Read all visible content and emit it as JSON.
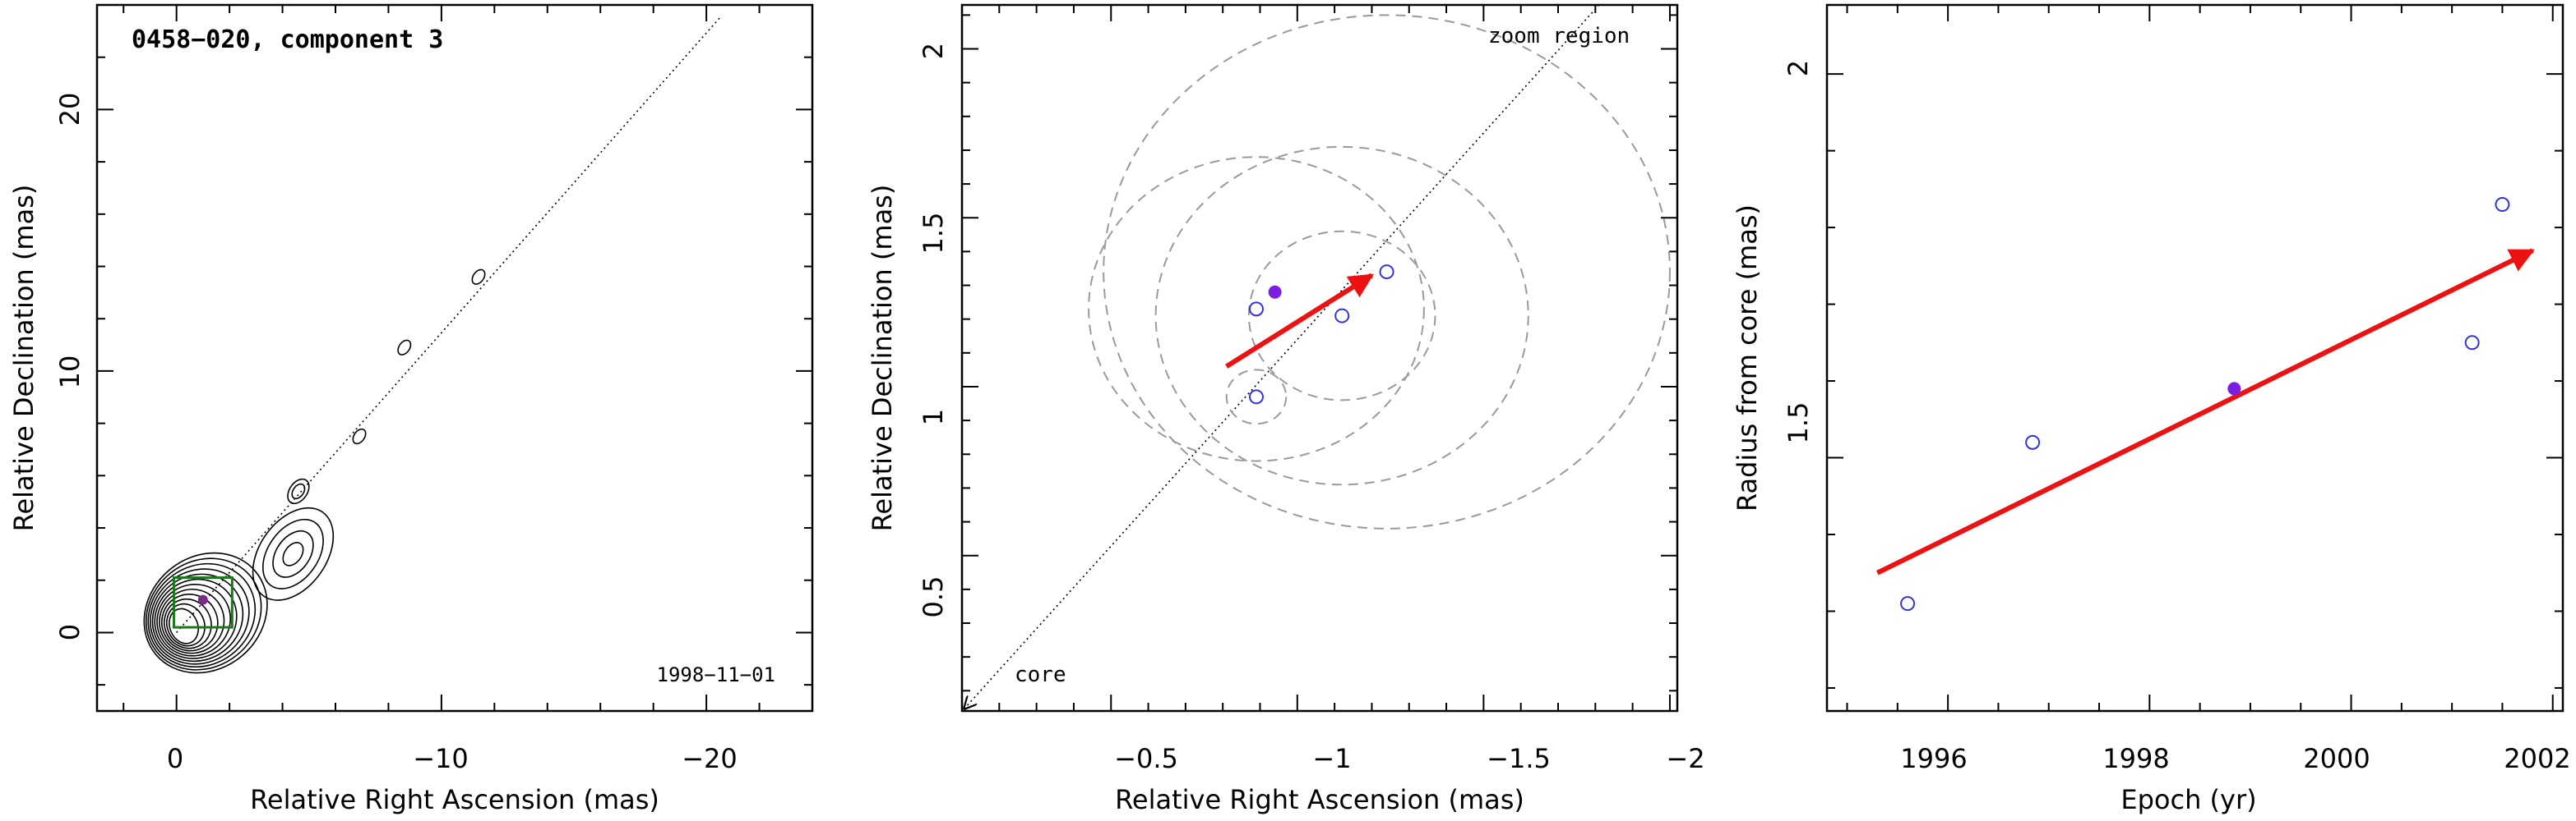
{
  "chart_data": [
    {
      "type": "contour",
      "title": "0458−020, component 3",
      "epoch_label": "1998−11−01",
      "xlabel": "Relative Right Ascension (mas)",
      "ylabel": "Relative Declination (mas)",
      "xlim": [
        3,
        -24
      ],
      "ylim": [
        -3,
        24
      ],
      "xticks": [
        0,
        -10,
        -20
      ],
      "xtick_labels": [
        "0",
        "−10",
        "−20"
      ],
      "yticks": [
        0,
        10,
        20
      ],
      "ytick_labels": [
        "0",
        "10",
        "20"
      ],
      "jet_axis_end": [
        -20.5,
        23.5
      ],
      "jet_features": [
        {
          "x": -4.4,
          "y": 3.0
        },
        {
          "x": -4.6,
          "y": 5.4
        },
        {
          "x": -6.9,
          "y": 7.5
        },
        {
          "x": -8.6,
          "y": 10.9
        },
        {
          "x": -11.4,
          "y": 13.6
        }
      ],
      "zoom_box": {
        "x": [
          0.1,
          -2.1
        ],
        "y": [
          0.2,
          2.1
        ]
      },
      "component_marker": {
        "x": -1.0,
        "y": 1.25
      },
      "colors": {
        "contour": "#000000",
        "zoom_box": "#1a7a1a",
        "marker": "#7a2a8a"
      }
    },
    {
      "type": "scatter",
      "xlabel": "Relative Right Ascension (mas)",
      "ylabel": "Relative Declination (mas)",
      "xlim": [
        -0.1,
        -2.02
      ],
      "ylim": [
        0.04,
        2.13
      ],
      "xticks": [
        -0.5,
        -1,
        -1.5,
        -2
      ],
      "xtick_labels": [
        "−0.5",
        "−1",
        "−1.5",
        "−2"
      ],
      "yticks": [
        0.5,
        1,
        1.5,
        2
      ],
      "ytick_labels": [
        "0.5",
        "1",
        "1.5",
        "2"
      ],
      "annotations": [
        "zoom region",
        "core"
      ],
      "points_open": [
        {
          "x": -0.89,
          "y": 0.97
        },
        {
          "x": -0.89,
          "y": 1.23
        },
        {
          "x": -1.12,
          "y": 1.21
        },
        {
          "x": -1.24,
          "y": 1.34
        }
      ],
      "point_filled": {
        "x": -0.94,
        "y": 1.28
      },
      "circles": [
        {
          "x": -0.89,
          "y": 0.97,
          "r": 0.08
        },
        {
          "x": -1.12,
          "y": 1.21,
          "r": 0.25
        },
        {
          "x": -0.89,
          "y": 1.23,
          "r": 0.45
        },
        {
          "x": -1.12,
          "y": 1.21,
          "r": 0.5
        },
        {
          "x": -1.24,
          "y": 1.34,
          "r": 0.76
        }
      ],
      "motion_vector": {
        "from": [
          -0.81,
          1.06
        ],
        "to": [
          -1.2,
          1.33
        ]
      },
      "jet_axis": {
        "from": [
          -0.1,
          0.04
        ],
        "to": [
          -1.81,
          2.13
        ]
      },
      "colors": {
        "points": "#3333dd",
        "filled": "#7a1fe0",
        "vector": "#ee1111",
        "circles": "#9a9a9a"
      }
    },
    {
      "type": "scatter",
      "xlabel": "Epoch (yr)",
      "ylabel": "Radius from core (mas)",
      "xlim": [
        1994.8,
        2002.1
      ],
      "ylim": [
        1.17,
        2.09
      ],
      "xticks": [
        1996,
        1998,
        2000,
        2002
      ],
      "xtick_labels": [
        "1996",
        "1998",
        "2000",
        "2002"
      ],
      "yticks": [
        1.5,
        2
      ],
      "ytick_labels": [
        "1.5",
        "2"
      ],
      "points_open": [
        {
          "x": 1995.6,
          "y": 1.31
        },
        {
          "x": 1996.84,
          "y": 1.52
        },
        {
          "x": 2001.2,
          "y": 1.65
        },
        {
          "x": 2001.5,
          "y": 1.83
        }
      ],
      "point_filled": {
        "x": 1998.84,
        "y": 1.59
      },
      "trend": {
        "from": [
          1995.3,
          1.35
        ],
        "to": [
          2001.8,
          1.77
        ]
      },
      "colors": {
        "points": "#3333dd",
        "filled": "#7a1fe0",
        "trend": "#ee1111"
      }
    }
  ]
}
